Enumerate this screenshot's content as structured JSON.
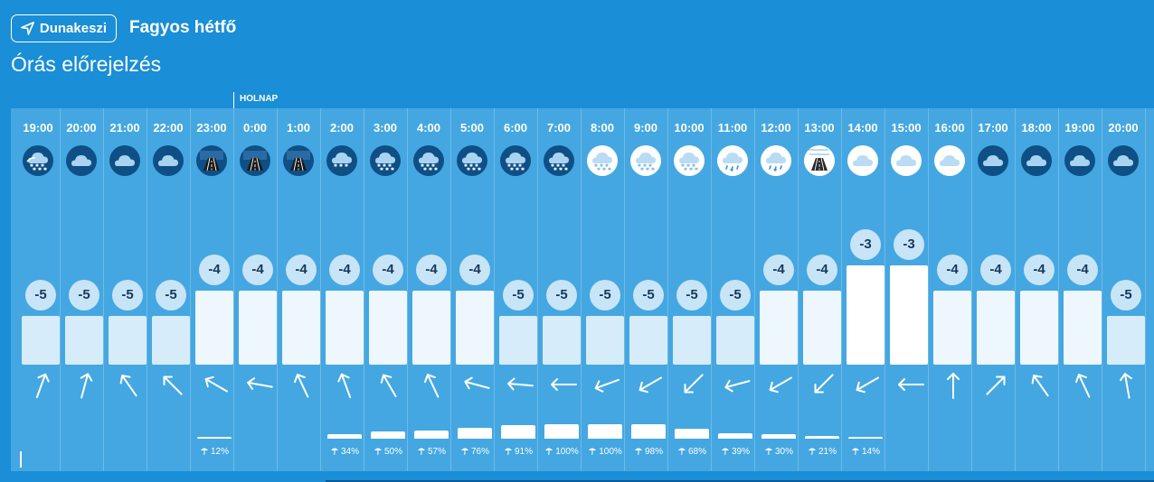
{
  "header": {
    "location_label": "Dunakeszi",
    "day_title": "Fagyos hétfő",
    "subtitle": "Órás előrejelzés",
    "next_day_label": "HOLNAP"
  },
  "colors": {
    "background": "#1a8ed6",
    "panel": "#44a7e1",
    "bubble": "#c8e4f7",
    "bubble_text": "#14395a"
  },
  "hours": [
    {
      "time": "19:00",
      "icon": "night-partly-cloudy-snow",
      "temp": "-5",
      "wind_dir": 200,
      "precip_label": "",
      "precip": 0
    },
    {
      "time": "20:00",
      "icon": "night-cloudy",
      "temp": "-5",
      "wind_dir": 195,
      "precip_label": "",
      "precip": 0
    },
    {
      "time": "21:00",
      "icon": "night-cloudy",
      "temp": "-5",
      "wind_dir": 145,
      "precip_label": "",
      "precip": 0
    },
    {
      "time": "22:00",
      "icon": "night-cloudy",
      "temp": "-5",
      "wind_dir": 135,
      "precip_label": "",
      "precip": 0
    },
    {
      "time": "23:00",
      "icon": "night-icy-road",
      "temp": "-4",
      "wind_dir": 120,
      "precip_label": "12%",
      "precip": 12
    },
    {
      "time": "0:00",
      "icon": "night-icy-road",
      "temp": "-4",
      "wind_dir": 100,
      "precip_label": "",
      "precip": 0
    },
    {
      "time": "1:00",
      "icon": "night-icy-road",
      "temp": "-4",
      "wind_dir": 155,
      "precip_label": "",
      "precip": 0
    },
    {
      "time": "2:00",
      "icon": "night-light-snow",
      "temp": "-4",
      "wind_dir": 160,
      "precip_label": "34%",
      "precip": 34
    },
    {
      "time": "3:00",
      "icon": "night-snow",
      "temp": "-4",
      "wind_dir": 150,
      "precip_label": "50%",
      "precip": 50
    },
    {
      "time": "4:00",
      "icon": "night-snow",
      "temp": "-4",
      "wind_dir": 155,
      "precip_label": "57%",
      "precip": 57
    },
    {
      "time": "5:00",
      "icon": "night-snow",
      "temp": "-4",
      "wind_dir": 105,
      "precip_label": "76%",
      "precip": 76
    },
    {
      "time": "6:00",
      "icon": "night-snow",
      "temp": "-5",
      "wind_dir": 95,
      "precip_label": "91%",
      "precip": 91
    },
    {
      "time": "7:00",
      "icon": "night-snow",
      "temp": "-5",
      "wind_dir": 90,
      "precip_label": "100%",
      "precip": 100
    },
    {
      "time": "8:00",
      "icon": "day-snow",
      "temp": "-5",
      "wind_dir": 70,
      "precip_label": "100%",
      "precip": 100
    },
    {
      "time": "9:00",
      "icon": "day-snow",
      "temp": "-5",
      "wind_dir": 60,
      "precip_label": "98%",
      "precip": 98
    },
    {
      "time": "10:00",
      "icon": "day-snow",
      "temp": "-5",
      "wind_dir": 45,
      "precip_label": "68%",
      "precip": 68
    },
    {
      "time": "11:00",
      "icon": "day-sleet",
      "temp": "-5",
      "wind_dir": 75,
      "precip_label": "39%",
      "precip": 39
    },
    {
      "time": "12:00",
      "icon": "day-sleet",
      "temp": "-4",
      "wind_dir": 60,
      "precip_label": "30%",
      "precip": 30
    },
    {
      "time": "13:00",
      "icon": "day-icy-road",
      "temp": "-4",
      "wind_dir": 45,
      "precip_label": "21%",
      "precip": 21
    },
    {
      "time": "14:00",
      "icon": "day-cloudy",
      "temp": "-3",
      "wind_dir": 60,
      "precip_label": "14%",
      "precip": 14
    },
    {
      "time": "15:00",
      "icon": "day-cloudy",
      "temp": "-3",
      "wind_dir": 90,
      "precip_label": "",
      "precip": 0
    },
    {
      "time": "16:00",
      "icon": "day-cloudy",
      "temp": "-4",
      "wind_dir": 180,
      "precip_label": "",
      "precip": 0
    },
    {
      "time": "17:00",
      "icon": "night-cloudy",
      "temp": "-4",
      "wind_dir": 225,
      "precip_label": "",
      "precip": 0
    },
    {
      "time": "18:00",
      "icon": "night-cloudy",
      "temp": "-4",
      "wind_dir": 145,
      "precip_label": "",
      "precip": 0
    },
    {
      "time": "19:00",
      "icon": "night-cloudy",
      "temp": "-4",
      "wind_dir": 155,
      "precip_label": "",
      "precip": 0
    },
    {
      "time": "20:00",
      "icon": "night-cloudy",
      "temp": "-5",
      "wind_dir": 170,
      "precip_label": "",
      "precip": 0
    }
  ]
}
